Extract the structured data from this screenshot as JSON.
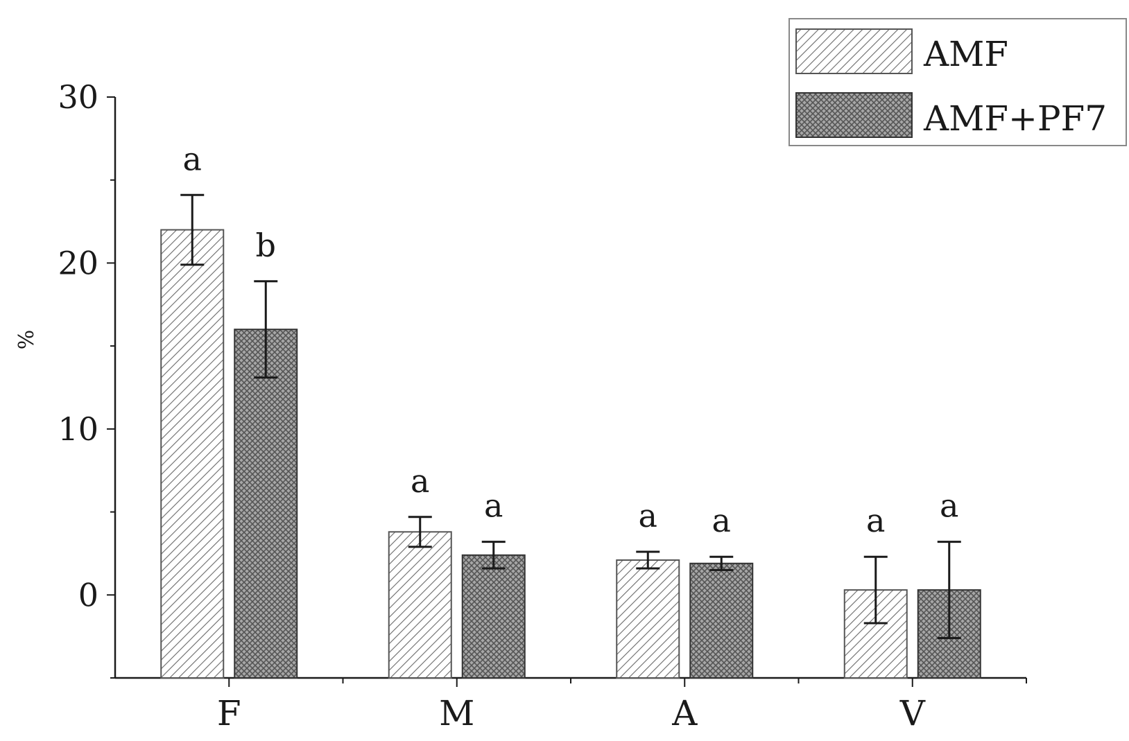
{
  "chart_data": {
    "type": "bar",
    "title": "",
    "xlabel": "",
    "ylabel": "%",
    "ylim": [
      -5,
      30
    ],
    "yticks": [
      0,
      10,
      20,
      30
    ],
    "categories": [
      "F",
      "M",
      "A",
      "V"
    ],
    "series": [
      {
        "name": "AMF",
        "pattern": "diagonal-hatch",
        "fill": "#ffffff",
        "stroke": "#555555",
        "values": [
          22.0,
          3.8,
          2.1,
          0.3
        ],
        "errors": [
          2.1,
          0.9,
          0.5,
          2.0
        ],
        "letters": [
          "a",
          "a",
          "a",
          "a"
        ]
      },
      {
        "name": "AMF+PF7",
        "pattern": "crosshatch",
        "fill": "#9a9a9a",
        "stroke": "#333333",
        "values": [
          16.0,
          2.4,
          1.9,
          0.3
        ],
        "errors": [
          2.9,
          0.8,
          0.4,
          2.9
        ],
        "letters": [
          "b",
          "a",
          "a",
          "a"
        ]
      }
    ],
    "legend": {
      "position": "top-right"
    },
    "grid": false
  }
}
